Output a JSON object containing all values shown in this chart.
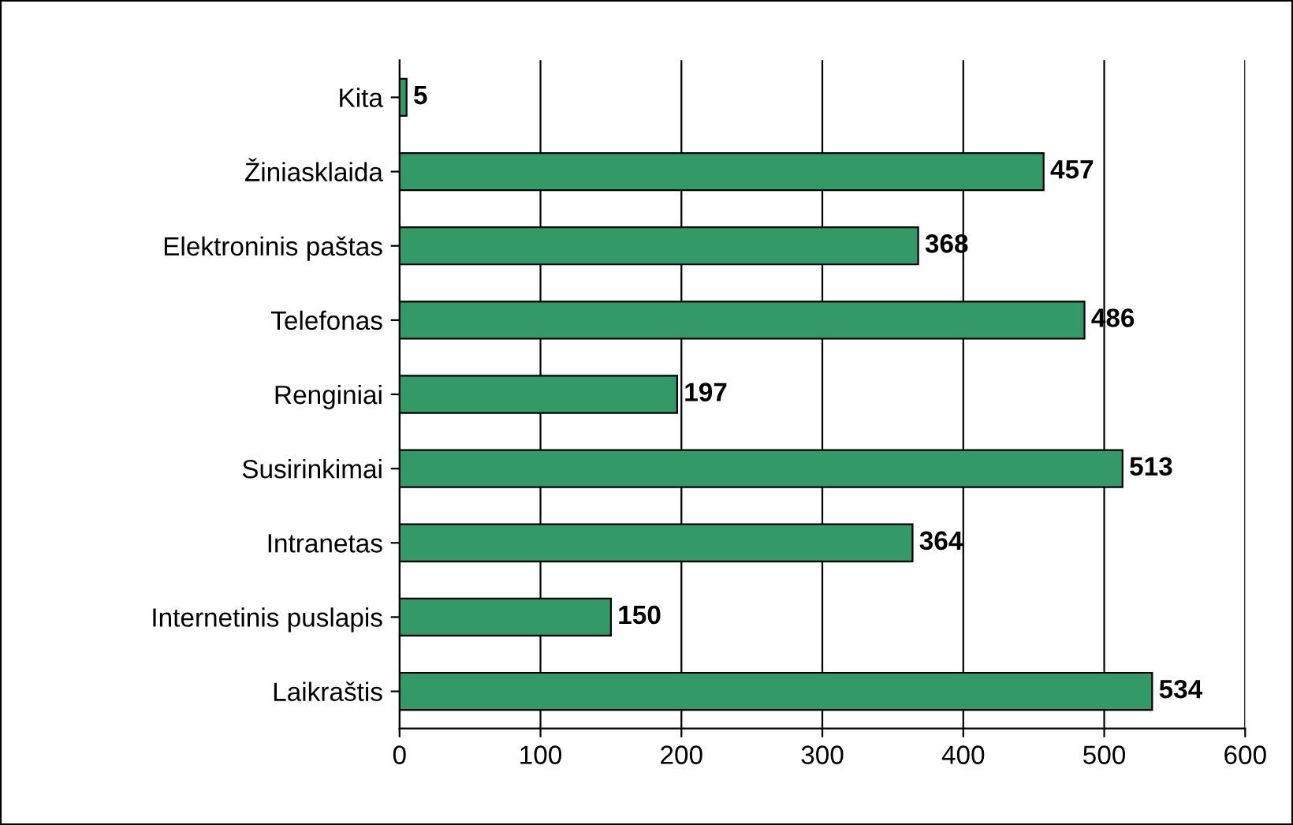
{
  "chart_data": {
    "type": "bar",
    "orientation": "horizontal",
    "categories": [
      "Kita",
      "Žiniasklaida",
      "Elektroninis paštas",
      "Telefonas",
      "Renginiai",
      "Susirinkimai",
      "Intranetas",
      "Internetinis puslapis",
      "Laikraštis"
    ],
    "values": [
      5,
      457,
      368,
      486,
      197,
      513,
      364,
      150,
      534
    ],
    "color": "#339966",
    "xlim": [
      0,
      600
    ],
    "xticks": [
      0,
      100,
      200,
      300,
      400,
      500,
      600
    ],
    "grid": "x",
    "data_labels": true
  }
}
